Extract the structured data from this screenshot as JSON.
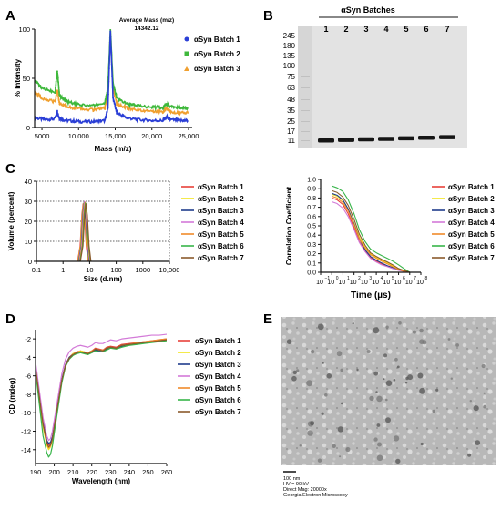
{
  "panel_letters": [
    "A",
    "B",
    "C",
    "D",
    "E"
  ],
  "colors": {
    "batch1": "#e8413a",
    "batch2": "#f2e51e",
    "batch3": "#1f3c8c",
    "batch4": "#d37ad8",
    "batch5": "#f08a2a",
    "batch6": "#38b54a",
    "batch7": "#8a5a2b",
    "msBlue": "#2b3fd6",
    "msGreen": "#3fb83c",
    "msOrange": "#f0a030"
  },
  "chart_data": [
    {
      "id": "A",
      "type": "line",
      "xlabel": "Mass (m/z)",
      "ylabel": "% Intensity",
      "xlim": [
        4000,
        25500
      ],
      "ylim": [
        0,
        100
      ],
      "x_ticks": [
        "5000",
        "10,000",
        "15,000",
        "20,000",
        "25,000"
      ],
      "y_ticks": [
        "0",
        "50",
        "100"
      ],
      "annotation": [
        "Average Mass (m/z)",
        "14342.12"
      ],
      "series": [
        {
          "name": "αSyn Batch 1",
          "color": "#2b3fd6",
          "marker": "circle",
          "x": [
            4000,
            5500,
            6800,
            7100,
            7400,
            8500,
            10000,
            12000,
            13600,
            14000,
            14342,
            14700,
            15200,
            16500,
            18000,
            20000,
            21500,
            22000,
            22500,
            24000,
            25000
          ],
          "y": [
            10,
            8,
            9,
            16,
            9,
            7,
            6,
            6,
            7,
            20,
            98,
            30,
            15,
            10,
            8,
            7,
            7,
            11,
            8,
            7,
            7
          ]
        },
        {
          "name": "αSyn Batch 2",
          "color": "#3fb83c",
          "marker": "square",
          "x": [
            4000,
            5000,
            6800,
            7100,
            7400,
            8500,
            10000,
            12000,
            13600,
            14000,
            14342,
            14700,
            15200,
            16500,
            18000,
            20000,
            21500,
            22000,
            22500,
            24000,
            25000
          ],
          "y": [
            48,
            40,
            36,
            58,
            32,
            26,
            23,
            22,
            25,
            40,
            100,
            45,
            30,
            24,
            22,
            21,
            20,
            24,
            21,
            20,
            19
          ]
        },
        {
          "name": "αSyn Batch 3",
          "color": "#f0a030",
          "marker": "triangle",
          "x": [
            4000,
            5000,
            6800,
            7100,
            7400,
            8500,
            10000,
            12000,
            13600,
            14000,
            14342,
            14700,
            15200,
            16500,
            18000,
            20000,
            21500,
            22000,
            22500,
            24000,
            25000
          ],
          "y": [
            36,
            30,
            26,
            38,
            24,
            21,
            19,
            18,
            20,
            35,
            96,
            40,
            24,
            20,
            18,
            17,
            16,
            19,
            16,
            15,
            15
          ]
        }
      ]
    },
    {
      "id": "C-left",
      "type": "line",
      "xlabel": "Size (d.nm)",
      "ylabel": "Volume (percent)",
      "xscale": "log",
      "xlim": [
        0.1,
        10000
      ],
      "ylim": [
        0,
        40
      ],
      "x_ticks": [
        "0.1",
        "1",
        "10",
        "100",
        "1000",
        "10,000"
      ],
      "y_ticks": [
        "0",
        "10",
        "20",
        "30",
        "40"
      ],
      "grid": "dotted horizontal",
      "peak": {
        "x": [
          4.0,
          5.0,
          5.8,
          6.5,
          7.3,
          8.5,
          10.0
        ],
        "y": [
          0,
          8,
          24,
          30,
          24,
          8,
          0
        ]
      },
      "series": [
        {
          "name": "αSyn Batch 1",
          "color": "#e8413a"
        },
        {
          "name": "αSyn Batch 2",
          "color": "#f2e51e"
        },
        {
          "name": "αSyn Batch 3",
          "color": "#1f3c8c"
        },
        {
          "name": "αSyn Batch 4",
          "color": "#d37ad8"
        },
        {
          "name": "αSyn Batch 5",
          "color": "#f08a2a"
        },
        {
          "name": "αSyn Batch 6",
          "color": "#38b54a"
        },
        {
          "name": "αSyn Batch 7",
          "color": "#8a5a2b"
        }
      ]
    },
    {
      "id": "C-right",
      "type": "line",
      "xlabel": "Time (µs)",
      "ylabel": "Correlation Coefficient",
      "xscale": "log",
      "xlim": [
        0.1,
        100000000
      ],
      "ylim": [
        0,
        1.0
      ],
      "x_ticks": [
        "10",
        "10",
        "10",
        "10",
        "10",
        "10",
        "10",
        "10",
        "10",
        "10"
      ],
      "x_tick_exponents": [
        "−1",
        "0",
        "1",
        "2",
        "3",
        "4",
        "5",
        "6",
        "7",
        "8"
      ],
      "y_ticks": [
        "0.0",
        "0.1",
        "0.2",
        "0.3",
        "0.4",
        "0.5",
        "0.6",
        "0.7",
        "0.8",
        "0.9",
        "1.0"
      ],
      "x": [
        1,
        3,
        10,
        30,
        100,
        300,
        1000,
        3000,
        10000,
        30000,
        100000,
        300000,
        1000000,
        3000000,
        10000000
      ],
      "series": [
        {
          "name": "αSyn Batch 1",
          "color": "#e8413a",
          "y": [
            0.8,
            0.78,
            0.73,
            0.63,
            0.48,
            0.33,
            0.23,
            0.16,
            0.12,
            0.09,
            0.07,
            0.05,
            0.03,
            0.01,
            0.0
          ]
        },
        {
          "name": "αSyn Batch 2",
          "color": "#f2e51e",
          "y": [
            0.84,
            0.82,
            0.77,
            0.68,
            0.53,
            0.38,
            0.27,
            0.2,
            0.16,
            0.13,
            0.1,
            0.07,
            0.04,
            0.02,
            0.0
          ]
        },
        {
          "name": "αSyn Batch 3",
          "color": "#1f3c8c",
          "y": [
            0.85,
            0.83,
            0.78,
            0.68,
            0.52,
            0.36,
            0.24,
            0.17,
            0.13,
            0.1,
            0.07,
            0.05,
            0.03,
            0.01,
            0.0
          ]
        },
        {
          "name": "αSyn Batch 4",
          "color": "#d37ad8",
          "y": [
            0.76,
            0.74,
            0.69,
            0.6,
            0.46,
            0.32,
            0.22,
            0.15,
            0.11,
            0.08,
            0.06,
            0.04,
            0.02,
            0.01,
            0.0
          ]
        },
        {
          "name": "αSyn Batch 5",
          "color": "#f08a2a",
          "y": [
            0.82,
            0.8,
            0.75,
            0.66,
            0.51,
            0.36,
            0.26,
            0.19,
            0.15,
            0.12,
            0.09,
            0.06,
            0.03,
            0.01,
            0.0
          ]
        },
        {
          "name": "αSyn Batch 6",
          "color": "#38b54a",
          "y": [
            0.93,
            0.91,
            0.87,
            0.78,
            0.63,
            0.46,
            0.33,
            0.25,
            0.21,
            0.18,
            0.15,
            0.12,
            0.08,
            0.04,
            0.0
          ]
        },
        {
          "name": "αSyn Batch 7",
          "color": "#8a5a2b",
          "y": [
            0.88,
            0.86,
            0.81,
            0.72,
            0.57,
            0.41,
            0.29,
            0.21,
            0.17,
            0.14,
            0.11,
            0.08,
            0.04,
            0.02,
            0.0
          ]
        }
      ]
    },
    {
      "id": "D",
      "type": "line",
      "xlabel": "Wavelength (nm)",
      "ylabel": "CD  (mdeg)",
      "xlim": [
        190,
        260
      ],
      "ylim": [
        -15.5,
        -1
      ],
      "x_ticks": [
        "190",
        "200",
        "210",
        "220",
        "230",
        "240",
        "250",
        "260"
      ],
      "y_ticks": [
        "-2",
        "-4",
        "-6",
        "-8",
        "-10",
        "-12",
        "-14"
      ],
      "x": [
        190,
        192,
        194,
        196,
        197,
        198,
        199,
        200,
        202,
        204,
        206,
        208,
        210,
        212,
        214,
        216,
        218,
        220,
        222,
        224,
        226,
        228,
        230,
        233,
        236,
        240,
        244,
        248,
        252,
        256,
        260
      ],
      "series": [
        {
          "name": "αSyn Batch 1",
          "color": "#e8413a",
          "y": [
            -5,
            -8,
            -11,
            -13,
            -13.5,
            -13.4,
            -12.8,
            -11.5,
            -9,
            -6.5,
            -4.8,
            -4,
            -3.6,
            -3.4,
            -3.3,
            -3.4,
            -3.5,
            -3.3,
            -3.0,
            -3.1,
            -3.2,
            -2.9,
            -2.8,
            -2.9,
            -2.6,
            -2.5,
            -2.4,
            -2.3,
            -2.2,
            -2.1,
            -2.0
          ]
        },
        {
          "name": "αSyn Batch 2",
          "color": "#f2e51e",
          "y": [
            -5,
            -8.5,
            -11.5,
            -13.5,
            -14,
            -13.7,
            -13,
            -11.8,
            -9.2,
            -6.6,
            -4.9,
            -4.1,
            -3.6,
            -3.5,
            -3.3,
            -3.4,
            -3.6,
            -3.4,
            -3.1,
            -3.2,
            -3.3,
            -3.0,
            -2.9,
            -3.0,
            -2.7,
            -2.6,
            -2.5,
            -2.4,
            -2.3,
            -2.2,
            -2.1
          ]
        },
        {
          "name": "αSyn Batch 3",
          "color": "#1f3c8c",
          "y": [
            -5,
            -8,
            -11,
            -13,
            -13.3,
            -13.2,
            -12.6,
            -11.4,
            -8.9,
            -6.4,
            -4.8,
            -4.0,
            -3.7,
            -3.5,
            -3.4,
            -3.5,
            -3.6,
            -3.5,
            -3.2,
            -3.3,
            -3.3,
            -3.1,
            -2.9,
            -3.0,
            -2.8,
            -2.6,
            -2.5,
            -2.4,
            -2.3,
            -2.2,
            -2.1
          ]
        },
        {
          "name": "αSyn Batch 4",
          "color": "#d37ad8",
          "y": [
            -4.5,
            -7.5,
            -10.5,
            -12.5,
            -13,
            -12.8,
            -12,
            -10.8,
            -8.3,
            -5.8,
            -4.2,
            -3.4,
            -3.0,
            -2.8,
            -2.7,
            -2.8,
            -2.9,
            -2.7,
            -2.4,
            -2.5,
            -2.5,
            -2.3,
            -2.1,
            -2.2,
            -2.0,
            -1.9,
            -1.8,
            -1.7,
            -1.6,
            -1.6,
            -1.5
          ]
        },
        {
          "name": "αSyn Batch 5",
          "color": "#f08a2a",
          "y": [
            -5.2,
            -8.3,
            -11.3,
            -13.3,
            -13.8,
            -13.6,
            -12.9,
            -11.6,
            -9.1,
            -6.6,
            -4.9,
            -4.1,
            -3.7,
            -3.5,
            -3.4,
            -3.5,
            -3.5,
            -3.3,
            -3.1,
            -3.2,
            -3.2,
            -3.0,
            -2.9,
            -3.0,
            -2.7,
            -2.6,
            -2.4,
            -2.3,
            -2.2,
            -2.1,
            -2.0
          ]
        },
        {
          "name": "αSyn Batch 6",
          "color": "#38b54a",
          "y": [
            -5.5,
            -9,
            -12.5,
            -14.3,
            -14.8,
            -14.5,
            -13.6,
            -12.2,
            -9.5,
            -6.8,
            -5.0,
            -4.2,
            -3.8,
            -3.6,
            -3.5,
            -3.6,
            -3.7,
            -3.5,
            -3.3,
            -3.4,
            -3.4,
            -3.2,
            -3.0,
            -3.1,
            -2.9,
            -2.7,
            -2.6,
            -2.5,
            -2.4,
            -2.3,
            -2.2
          ]
        },
        {
          "name": "αSyn Batch 7",
          "color": "#8a5a2b",
          "y": [
            -5.1,
            -8.2,
            -11.2,
            -13.2,
            -13.7,
            -13.5,
            -12.8,
            -11.5,
            -9.0,
            -6.5,
            -4.9,
            -4.1,
            -3.7,
            -3.5,
            -3.4,
            -3.5,
            -3.6,
            -3.4,
            -3.1,
            -3.2,
            -3.3,
            -3.0,
            -2.9,
            -3.0,
            -2.7,
            -2.6,
            -2.5,
            -2.4,
            -2.3,
            -2.2,
            -2.1
          ]
        }
      ]
    }
  ],
  "gel": {
    "title": "αSyn Batches",
    "lanes": [
      "1",
      "2",
      "3",
      "4",
      "5",
      "6",
      "7"
    ],
    "markers": [
      "245",
      "180",
      "135",
      "100",
      "75",
      "63",
      "48",
      "35",
      "25",
      "17",
      "11"
    ]
  },
  "em": {
    "caption": [
      "100 nm",
      "HV = 90 kV",
      "Direct Mag: 20000x",
      "Georgia Electron Microscopy"
    ]
  }
}
